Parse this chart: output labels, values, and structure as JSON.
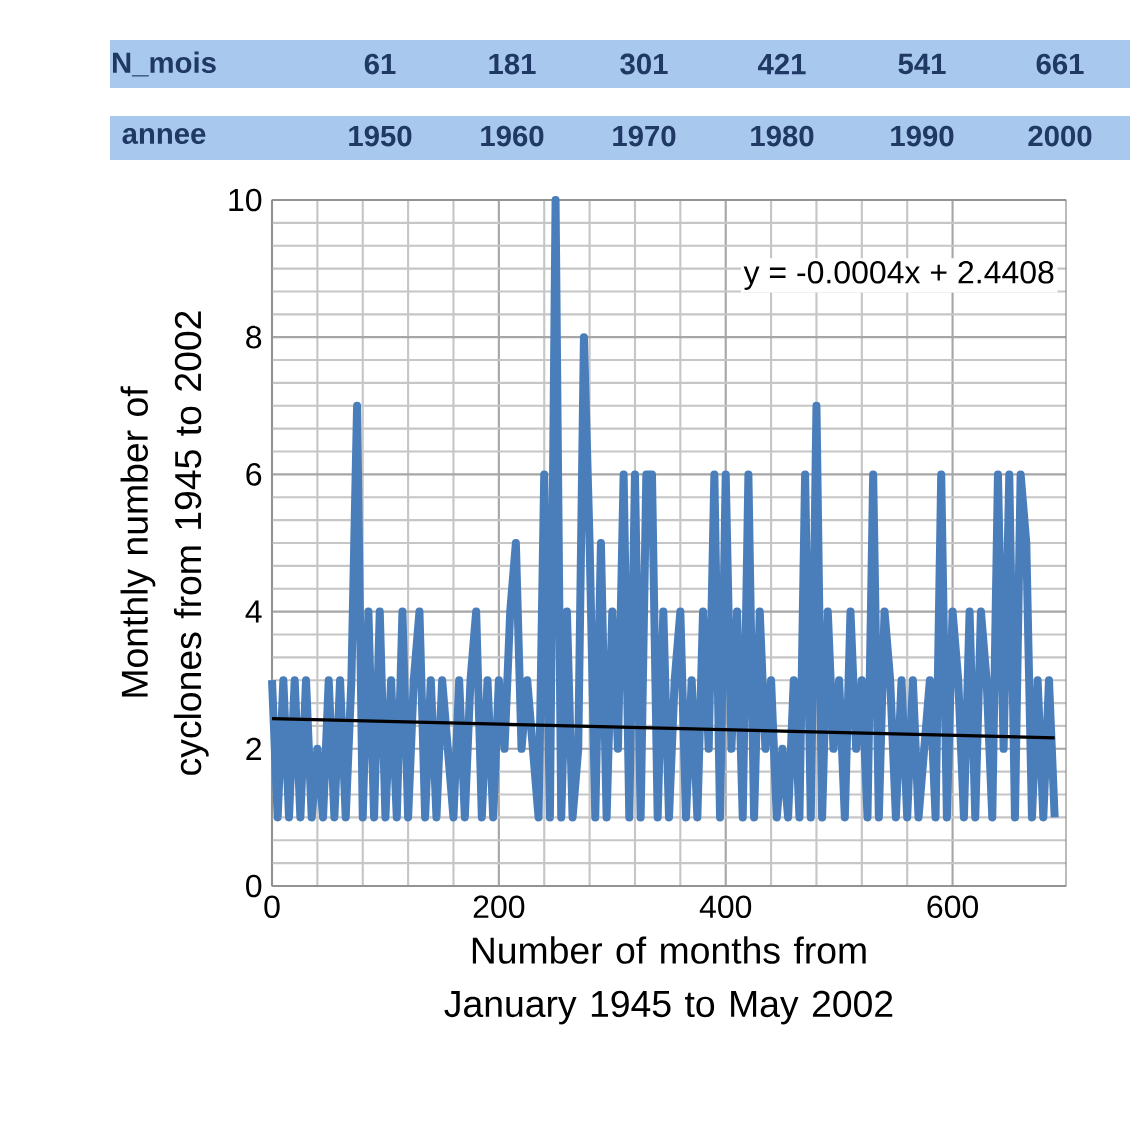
{
  "chart_data": {
    "type": "line",
    "xlabel": "Number of months from January 1945 to May 2002",
    "ylabel": "Monthly number of cyclones from 1945 to 2002",
    "annotations": [
      "y = -0.0004x + 2.4408",
      "N_mois",
      "61",
      "181",
      "301",
      "421",
      "541",
      "661",
      "annee",
      "1950",
      "1960",
      "1970",
      "1980",
      "1990",
      "2000"
    ],
    "xlim": [
      0,
      700
    ],
    "xticks": [
      0,
      200,
      400,
      600
    ],
    "ylim": [
      0,
      10
    ],
    "yticks": [
      0,
      2,
      4,
      6,
      8,
      10
    ],
    "grid": true,
    "series": [
      {
        "color": "#4a7ebb",
        "x": [
          0,
          5,
          10,
          15,
          20,
          25,
          30,
          35,
          40,
          45,
          50,
          55,
          60,
          65,
          70,
          75,
          80,
          85,
          90,
          95,
          100,
          105,
          110,
          115,
          120,
          125,
          130,
          135,
          140,
          145,
          150,
          155,
          160,
          165,
          170,
          175,
          180,
          185,
          190,
          195,
          200,
          205,
          210,
          215,
          220,
          225,
          230,
          235,
          240,
          245,
          250,
          255,
          260,
          265,
          270,
          275,
          280,
          285,
          290,
          295,
          300,
          305,
          310,
          315,
          320,
          325,
          330,
          335,
          340,
          345,
          350,
          355,
          360,
          365,
          370,
          375,
          380,
          385,
          390,
          395,
          400,
          405,
          410,
          415,
          420,
          425,
          430,
          435,
          440,
          445,
          450,
          455,
          460,
          465,
          470,
          475,
          480,
          485,
          490,
          495,
          500,
          505,
          510,
          515,
          520,
          525,
          530,
          535,
          540,
          545,
          550,
          555,
          560,
          565,
          570,
          575,
          580,
          585,
          590,
          595,
          600,
          605,
          610,
          615,
          620,
          625,
          630,
          635,
          640,
          645,
          650,
          655,
          660,
          665,
          670,
          675,
          680,
          685,
          690
        ],
        "values": [
          3,
          1,
          3,
          1,
          3,
          1,
          3,
          1,
          2,
          1,
          3,
          1,
          3,
          1,
          3,
          7,
          1,
          4,
          1,
          4,
          1,
          3,
          1,
          4,
          1,
          3,
          4,
          1,
          3,
          1,
          3,
          2,
          1,
          3,
          1,
          3,
          4,
          1,
          3,
          1,
          3,
          2,
          4,
          5,
          2,
          3,
          2,
          1,
          6,
          1,
          10,
          1,
          4,
          1,
          2,
          8,
          5,
          1,
          5,
          1,
          4,
          2,
          6,
          1,
          6,
          1,
          6,
          6,
          1,
          4,
          1,
          3,
          4,
          1,
          3,
          1,
          4,
          2,
          6,
          1,
          6,
          2,
          4,
          1,
          6,
          1,
          4,
          2,
          3,
          1,
          2,
          1,
          3,
          1,
          6,
          1,
          7,
          1,
          4,
          2,
          3,
          1,
          4,
          2,
          3,
          1,
          6,
          1,
          4,
          3,
          1,
          3,
          1,
          3,
          1,
          2,
          3,
          1,
          6,
          1,
          4,
          3,
          1,
          4,
          1,
          4,
          3,
          1,
          6,
          2,
          6,
          1,
          6,
          5,
          1,
          3,
          1,
          3,
          1
        ]
      },
      {
        "type": "line",
        "color": "#000000",
        "x": [
          0,
          690
        ],
        "values": [
          2.44,
          2.16
        ]
      }
    ]
  }
}
